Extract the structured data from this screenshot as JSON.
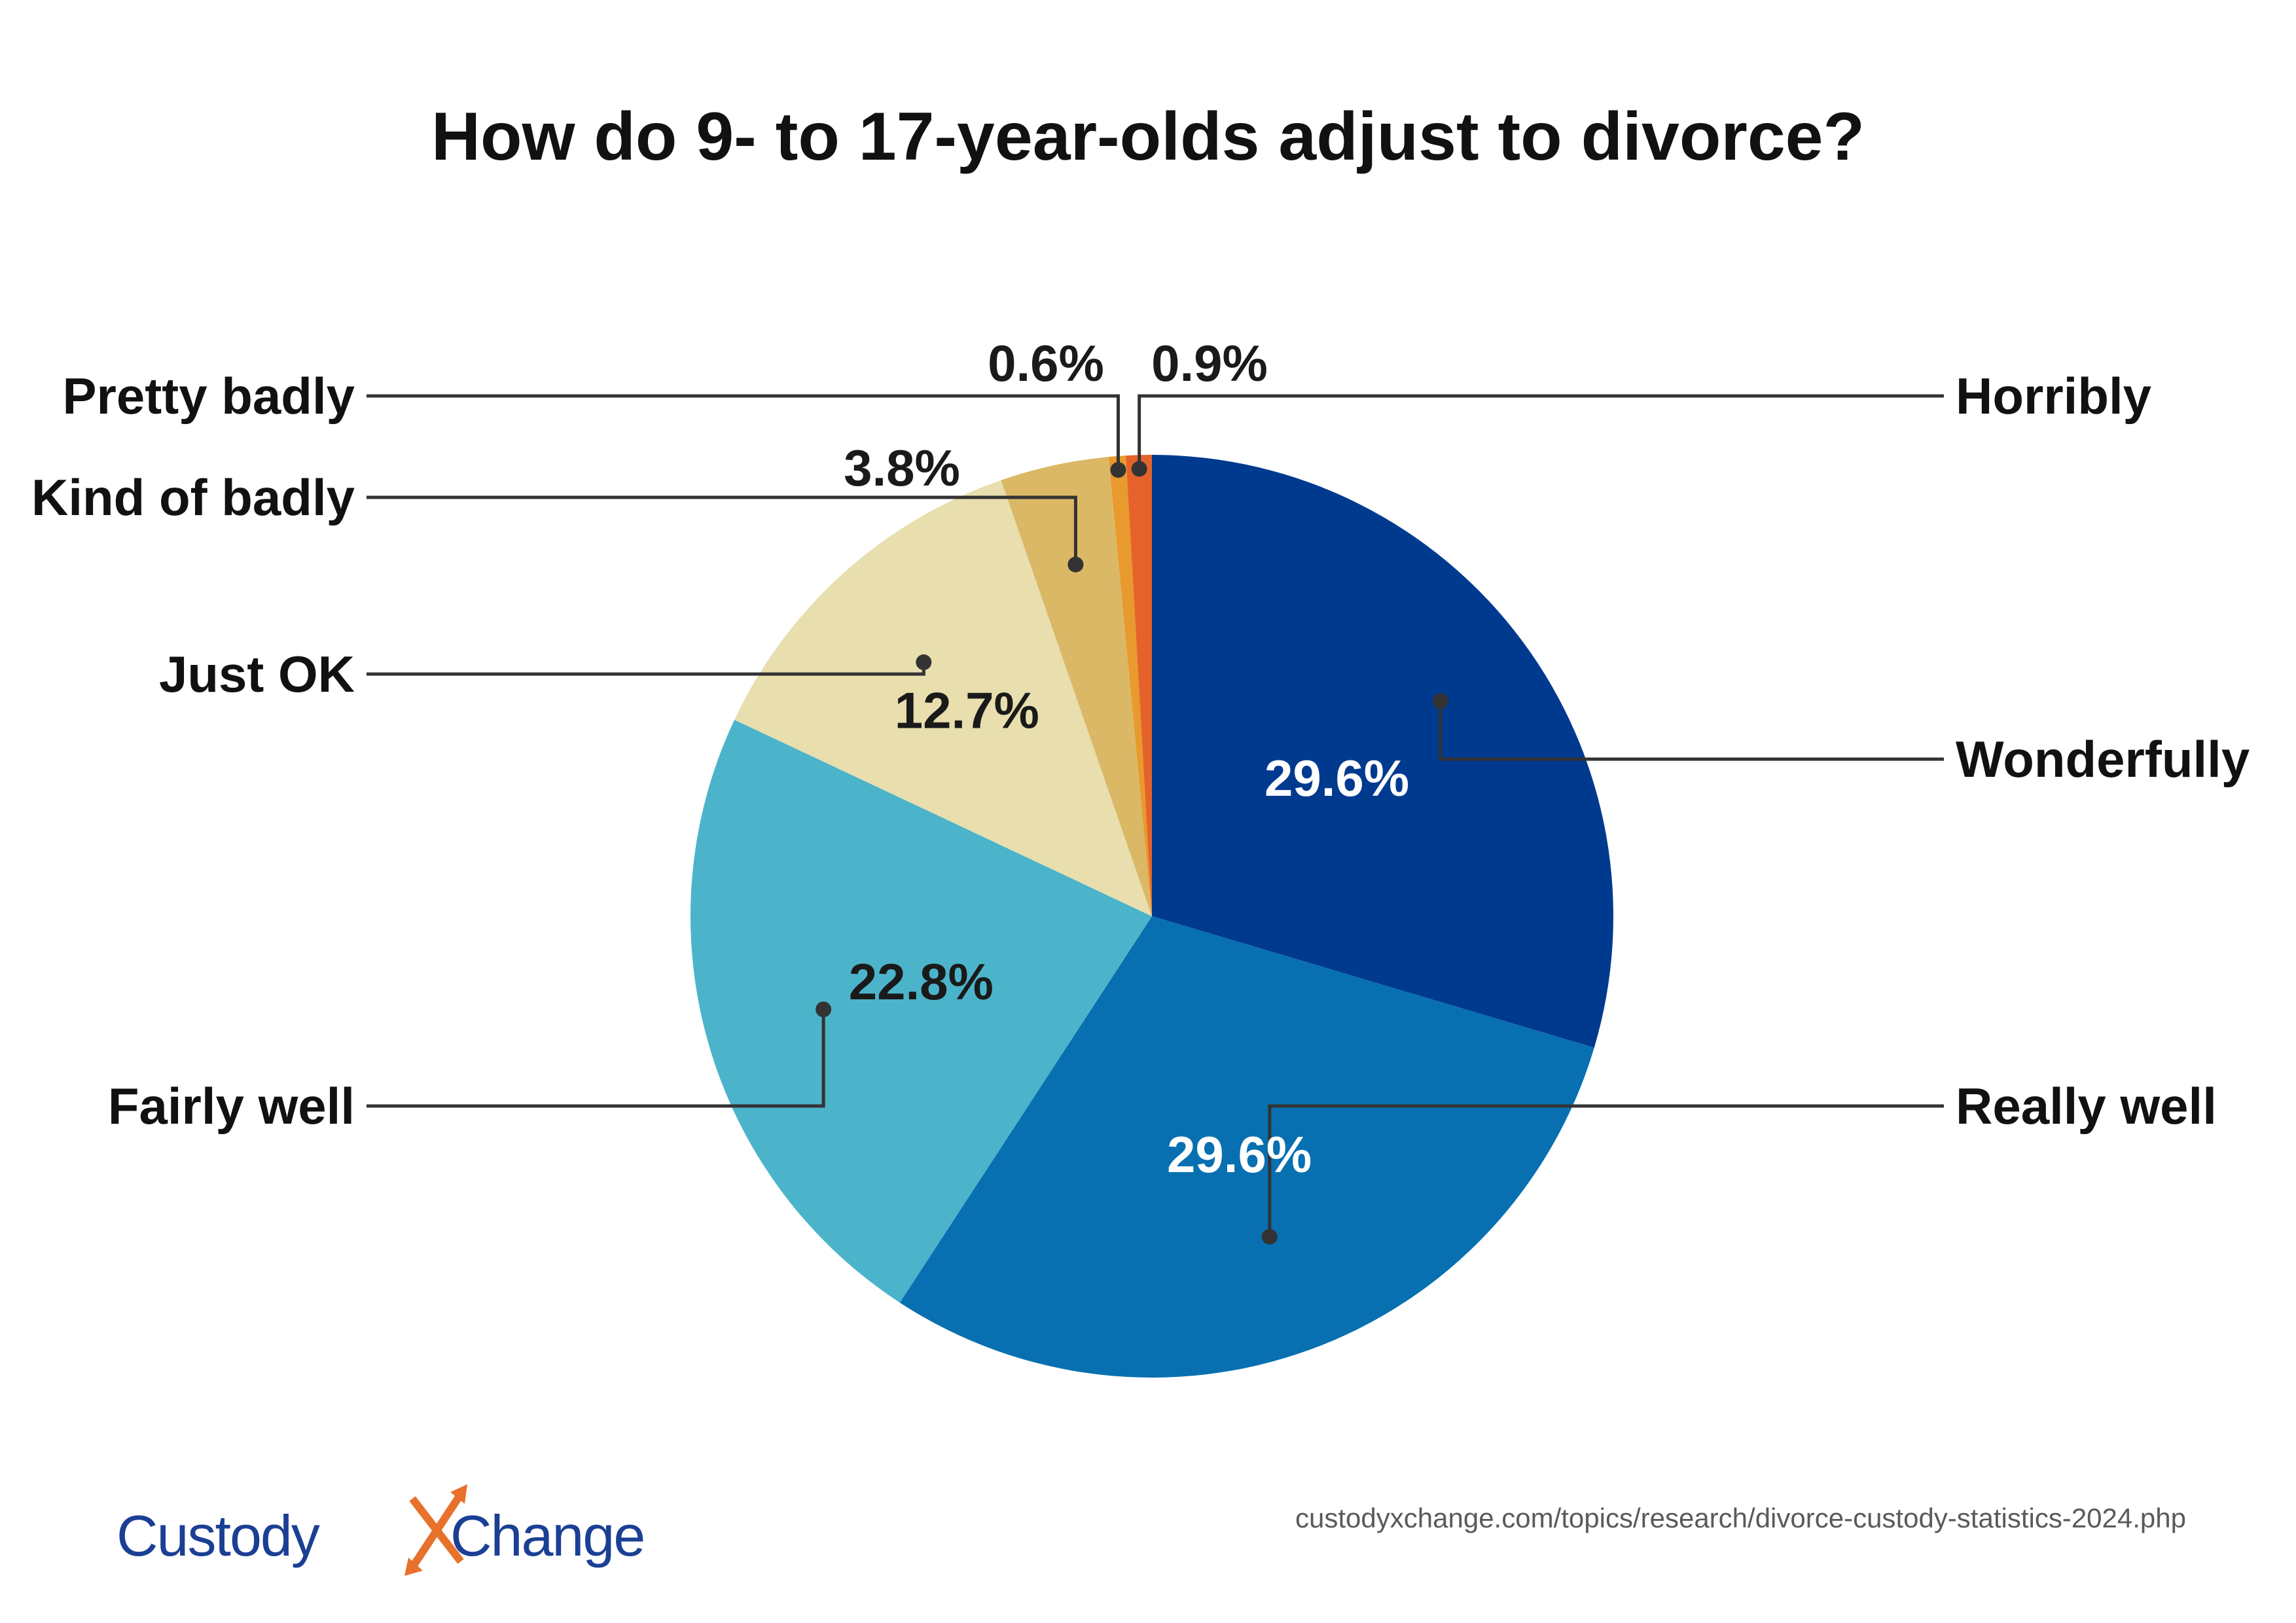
{
  "chart_data": {
    "type": "pie",
    "title": "How do 9- to 17-year-olds adjust to divorce?",
    "slices": [
      {
        "label": "Wonderfully",
        "value": 29.6,
        "value_label": "29.6%",
        "color": "#003A8F"
      },
      {
        "label": "Really well",
        "value": 29.6,
        "value_label": "29.6%",
        "color": "#0870B1"
      },
      {
        "label": "Fairly well",
        "value": 22.8,
        "value_label": "22.8%",
        "color": "#4CB4CA"
      },
      {
        "label": "Just OK",
        "value": 12.7,
        "value_label": "12.7%",
        "color": "#E8DEAE"
      },
      {
        "label": "Kind of badly",
        "value": 3.8,
        "value_label": "3.8%",
        "color": "#DBB866"
      },
      {
        "label": "Pretty badly",
        "value": 0.6,
        "value_label": "0.6%",
        "color": "#E89A2E"
      },
      {
        "label": "Horribly",
        "value": 0.9,
        "value_label": "0.9%",
        "color": "#E5632A"
      }
    ]
  },
  "footer": {
    "source_url": "custodyxchange.com/topics/research/divorce-custody-statistics-2024.php",
    "brand_text_1": "Custody",
    "brand_text_2": "Change",
    "brand_color": "#1b3f94",
    "brand_accent_color": "#E8712C"
  }
}
